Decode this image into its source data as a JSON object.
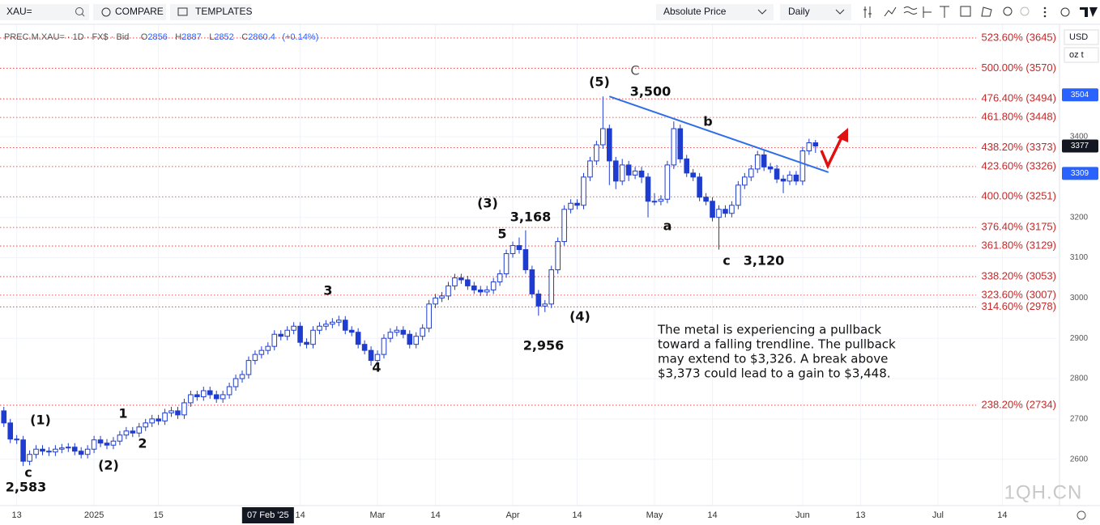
{
  "toolbar": {
    "symbol": "XAU=",
    "compare": "COMPARE",
    "templates": "TEMPLATES",
    "price_mode": "Absolute Price",
    "interval": "Daily"
  },
  "chart_data": {
    "type": "candlestick",
    "legend": {
      "name": "PREC.M.XAU= · 1D · FX$ · Bid",
      "open": {
        "label": "O",
        "value": 2856
      },
      "high": {
        "label": "H",
        "value": 2887
      },
      "low": {
        "label": "L",
        "value": 2852
      },
      "close": {
        "label": "C",
        "value": 2860.4
      },
      "change": "(+0.14%)"
    },
    "currency": "USD",
    "unit": "oz t",
    "watermark": "1QH.CN",
    "color_down": "#1e3ccf",
    "color_up": "#ffffff",
    "color_border": "#1e3ccf",
    "xlim": [
      -0.6,
      163.5
    ],
    "ylim": [
      2485,
      3679
    ],
    "yticks": [
      2600,
      2700,
      2800,
      2900,
      3000,
      3100,
      3200,
      3400
    ],
    "xticks": [
      {
        "value": 2,
        "label": "13"
      },
      {
        "value": 14,
        "label": "2025"
      },
      {
        "value": 24,
        "label": "15"
      },
      {
        "value": 46,
        "label": "14"
      },
      {
        "value": 58,
        "label": "Mar"
      },
      {
        "value": 67,
        "label": "14"
      },
      {
        "value": 79,
        "label": "Apr"
      },
      {
        "value": 89,
        "label": "14"
      },
      {
        "value": 101,
        "label": "May"
      },
      {
        "value": 110,
        "label": "14"
      },
      {
        "value": 124,
        "label": "Jun"
      },
      {
        "value": 133,
        "label": "13"
      },
      {
        "value": 145,
        "label": "Jul"
      },
      {
        "value": 155,
        "label": "14"
      }
    ],
    "grid": true,
    "crosshair": {
      "x": 41,
      "label": "07 Feb '25"
    },
    "x": [
      0,
      1,
      2,
      3,
      4,
      5,
      6,
      7,
      8,
      9,
      10,
      11,
      12,
      13,
      14,
      15,
      16,
      17,
      18,
      19,
      20,
      21,
      22,
      23,
      24,
      25,
      26,
      27,
      28,
      29,
      30,
      31,
      32,
      33,
      34,
      35,
      36,
      37,
      38,
      39,
      40,
      41,
      42,
      43,
      44,
      45,
      46,
      47,
      48,
      49,
      50,
      51,
      52,
      53,
      54,
      55,
      56,
      57,
      58,
      59,
      60,
      61,
      62,
      63,
      64,
      65,
      66,
      67,
      68,
      69,
      70,
      71,
      72,
      73,
      74,
      75,
      76,
      77,
      78,
      79,
      80,
      81,
      82,
      83,
      84,
      85,
      86,
      87,
      88,
      89,
      90,
      91,
      92,
      93,
      94,
      95,
      96,
      97,
      98,
      99,
      100,
      101,
      102,
      103,
      104,
      105,
      106,
      107,
      108,
      109,
      110,
      111,
      112,
      113,
      114,
      115,
      116,
      117,
      118,
      119,
      120,
      121,
      122,
      123,
      124,
      125,
      126
    ],
    "open": [
      2720,
      2690,
      2650,
      2648,
      2595,
      2612,
      2625,
      2620,
      2618,
      2625,
      2628,
      2630,
      2620,
      2612,
      2625,
      2648,
      2640,
      2635,
      2645,
      2660,
      2670,
      2665,
      2680,
      2690,
      2700,
      2695,
      2715,
      2720,
      2710,
      2740,
      2760,
      2755,
      2770,
      2760,
      2750,
      2760,
      2780,
      2800,
      2810,
      2845,
      2860,
      2870,
      2880,
      2910,
      2905,
      2920,
      2930,
      2890,
      2885,
      2920,
      2930,
      2935,
      2940,
      2945,
      2920,
      2915,
      2885,
      2870,
      2845,
      2860,
      2900,
      2915,
      2920,
      2910,
      2885,
      2905,
      2925,
      2985,
      3000,
      3005,
      3030,
      3050,
      3045,
      3030,
      3020,
      3015,
      3020,
      3040,
      3060,
      3110,
      3130,
      3120,
      3070,
      3010,
      2980,
      2985,
      3070,
      3140,
      3220,
      3235,
      3230,
      3300,
      3340,
      3380,
      3420,
      3340,
      3290,
      3330,
      3305,
      3315,
      3300,
      3240,
      3240,
      3245,
      3330,
      3420,
      3345,
      3310,
      3300,
      3250,
      3240,
      3200,
      3220,
      3210,
      3230,
      3280,
      3300,
      3320,
      3355,
      3325,
      3320,
      3295,
      3290,
      3305,
      3290,
      3365,
      3385
    ],
    "high": [
      2730,
      2700,
      2660,
      2658,
      2622,
      2635,
      2635,
      2630,
      2635,
      2638,
      2640,
      2640,
      2630,
      2635,
      2658,
      2658,
      2650,
      2655,
      2670,
      2680,
      2680,
      2690,
      2700,
      2710,
      2710,
      2725,
      2730,
      2730,
      2750,
      2770,
      2770,
      2780,
      2780,
      2770,
      2770,
      2790,
      2810,
      2820,
      2855,
      2870,
      2880,
      2890,
      2920,
      2920,
      2930,
      2940,
      2940,
      2900,
      2930,
      2940,
      2945,
      2950,
      2956,
      2955,
      2930,
      2925,
      2895,
      2880,
      2870,
      2910,
      2925,
      2930,
      2930,
      2920,
      2915,
      2935,
      2995,
      3010,
      3015,
      3040,
      3060,
      3060,
      3055,
      3040,
      3030,
      3030,
      3050,
      3070,
      3120,
      3140,
      3150,
      3168,
      3080,
      3020,
      2995,
      3080,
      3150,
      3230,
      3245,
      3245,
      3310,
      3350,
      3390,
      3500,
      3430,
      3350,
      3345,
      3340,
      3325,
      3325,
      3310,
      3260,
      3255,
      3340,
      3438,
      3430,
      3355,
      3320,
      3310,
      3260,
      3250,
      3230,
      3230,
      3240,
      3290,
      3310,
      3330,
      3365,
      3365,
      3335,
      3330,
      3305,
      3315,
      3315,
      3375,
      3395,
      3392
    ],
    "low": [
      2680,
      2640,
      2638,
      2583,
      2585,
      2602,
      2610,
      2608,
      2608,
      2615,
      2618,
      2610,
      2602,
      2602,
      2615,
      2630,
      2625,
      2625,
      2635,
      2650,
      2655,
      2655,
      2670,
      2680,
      2685,
      2685,
      2705,
      2700,
      2700,
      2730,
      2745,
      2745,
      2750,
      2740,
      2740,
      2750,
      2770,
      2790,
      2800,
      2835,
      2850,
      2860,
      2870,
      2895,
      2895,
      2910,
      2880,
      2875,
      2875,
      2910,
      2920,
      2925,
      2930,
      2910,
      2905,
      2875,
      2860,
      2832,
      2835,
      2850,
      2890,
      2905,
      2900,
      2875,
      2875,
      2895,
      2915,
      2975,
      2990,
      2995,
      3020,
      3035,
      3020,
      3010,
      3005,
      3005,
      3010,
      3030,
      3050,
      3100,
      3110,
      3060,
      3000,
      2956,
      2965,
      2975,
      3060,
      3130,
      3210,
      3220,
      3220,
      3290,
      3330,
      3370,
      3280,
      3270,
      3280,
      3290,
      3295,
      3285,
      3200,
      3230,
      3230,
      3235,
      3320,
      3335,
      3300,
      3290,
      3240,
      3230,
      3190,
      3120,
      3200,
      3200,
      3220,
      3270,
      3290,
      3310,
      3315,
      3310,
      3285,
      3260,
      3280,
      3280,
      3280,
      3355,
      3360
    ],
    "close": [
      2690,
      2650,
      2648,
      2595,
      2612,
      2625,
      2620,
      2618,
      2625,
      2628,
      2630,
      2620,
      2612,
      2625,
      2648,
      2640,
      2635,
      2645,
      2660,
      2670,
      2665,
      2680,
      2690,
      2700,
      2695,
      2715,
      2720,
      2710,
      2740,
      2760,
      2755,
      2770,
      2760,
      2750,
      2760,
      2780,
      2800,
      2810,
      2845,
      2860,
      2870,
      2880,
      2910,
      2905,
      2920,
      2930,
      2890,
      2885,
      2920,
      2930,
      2935,
      2940,
      2945,
      2920,
      2915,
      2885,
      2870,
      2845,
      2860,
      2900,
      2915,
      2920,
      2910,
      2885,
      2905,
      2925,
      2985,
      3000,
      3005,
      3030,
      3050,
      3045,
      3030,
      3020,
      3015,
      3020,
      3040,
      3060,
      3110,
      3130,
      3120,
      3070,
      3010,
      2980,
      2985,
      3070,
      3140,
      3220,
      3235,
      3230,
      3300,
      3340,
      3380,
      3420,
      3340,
      3290,
      3330,
      3305,
      3315,
      3300,
      3240,
      3240,
      3245,
      3330,
      3420,
      3345,
      3310,
      3300,
      3250,
      3240,
      3200,
      3220,
      3210,
      3230,
      3280,
      3300,
      3320,
      3355,
      3325,
      3320,
      3295,
      3290,
      3305,
      3290,
      3365,
      3385,
      3377
    ],
    "fib_levels": {
      "color": "#d32f2f",
      "values": [
        3645,
        3570,
        3494,
        3448,
        3373,
        3326,
        3251,
        3175,
        3129,
        3053,
        3007,
        2978,
        2734
      ],
      "value_labels": [
        "523.60% (3645)",
        "500.00% (3570)",
        "476.40% (3494)",
        "461.80% (3448)",
        "438.20% (3373)",
        "423.60% (3326)",
        "400.00% (3251)",
        "376.40% (3175)",
        "361.80% (3129)",
        "338.20% (3053)",
        "323.60% (3007)",
        "314.60% (2978)",
        "238.20% (2734)"
      ]
    },
    "trendline": {
      "color": "#2f6ee8",
      "x": [
        94,
        128
      ],
      "y": [
        3500,
        3312
      ]
    },
    "price_badges": [
      {
        "value": 3504,
        "color": "#2962ff"
      },
      {
        "value": 3377,
        "color": "#131722"
      },
      {
        "value": 3309,
        "color": "#2962ff"
      }
    ],
    "annotations": [
      "(1)",
      "c",
      "2,583",
      "1",
      "(2)",
      "2",
      "3",
      "4",
      "5",
      "(3)",
      "3,168",
      "(4)",
      "2,956",
      "(5)",
      "C",
      "3,500",
      "b",
      "a",
      "c",
      "3,120"
    ],
    "note_lines": [
      "The metal is experiencing a pullback",
      "toward a falling trendline. The pullback",
      "may extend to $3,326. A break above",
      "$3,373 could lead to a gain to $3,448."
    ]
  }
}
